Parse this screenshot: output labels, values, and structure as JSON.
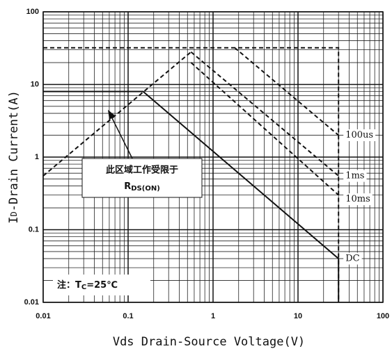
{
  "chart_data": {
    "type": "line",
    "xlabel": "Vds Drain-Source Voltage(V)",
    "ylabel_parts": [
      "I",
      "D",
      "-Drain Current(A)"
    ],
    "log_x": true,
    "log_y": true,
    "grid": true,
    "minor_grid": true,
    "xlim": [
      0.01,
      100
    ],
    "ylim": [
      0.01,
      100
    ],
    "xticks": [
      0.01,
      0.1,
      1,
      10,
      100
    ],
    "yticks": [
      0.01,
      0.1,
      1,
      10,
      100
    ],
    "series": [
      {
        "name": "DC",
        "dash": false,
        "color": "#111111",
        "x": [
          0.01,
          0.15,
          30,
          30
        ],
        "values": [
          8,
          8,
          0.04,
          0.01
        ]
      },
      {
        "dash": true,
        "color": "#111111",
        "x": [
          0.01,
          0.55
        ],
        "values": [
          0.55,
          28
        ]
      },
      {
        "dash": true,
        "color": "#111111",
        "x": [
          0.01,
          30,
          30
        ],
        "values": [
          32,
          32,
          0.01
        ]
      },
      {
        "name": "100us",
        "dash": true,
        "color": "#111111",
        "x": [
          1.8,
          30
        ],
        "values": [
          32,
          2
        ]
      },
      {
        "name": "1ms",
        "dash": true,
        "color": "#111111",
        "x": [
          0.55,
          30
        ],
        "values": [
          28,
          0.55
        ]
      },
      {
        "name": "10ms",
        "dash": true,
        "color": "#111111",
        "x": [
          0.55,
          30
        ],
        "values": [
          20,
          0.3
        ]
      }
    ],
    "annotation": {
      "line1": "此区域工作受限于",
      "r": "R",
      "r_sub": "DS(ON)"
    },
    "note": {
      "prefix": "注：",
      "t": "T",
      "t_sub": "C",
      "rest": "=25℃"
    }
  }
}
